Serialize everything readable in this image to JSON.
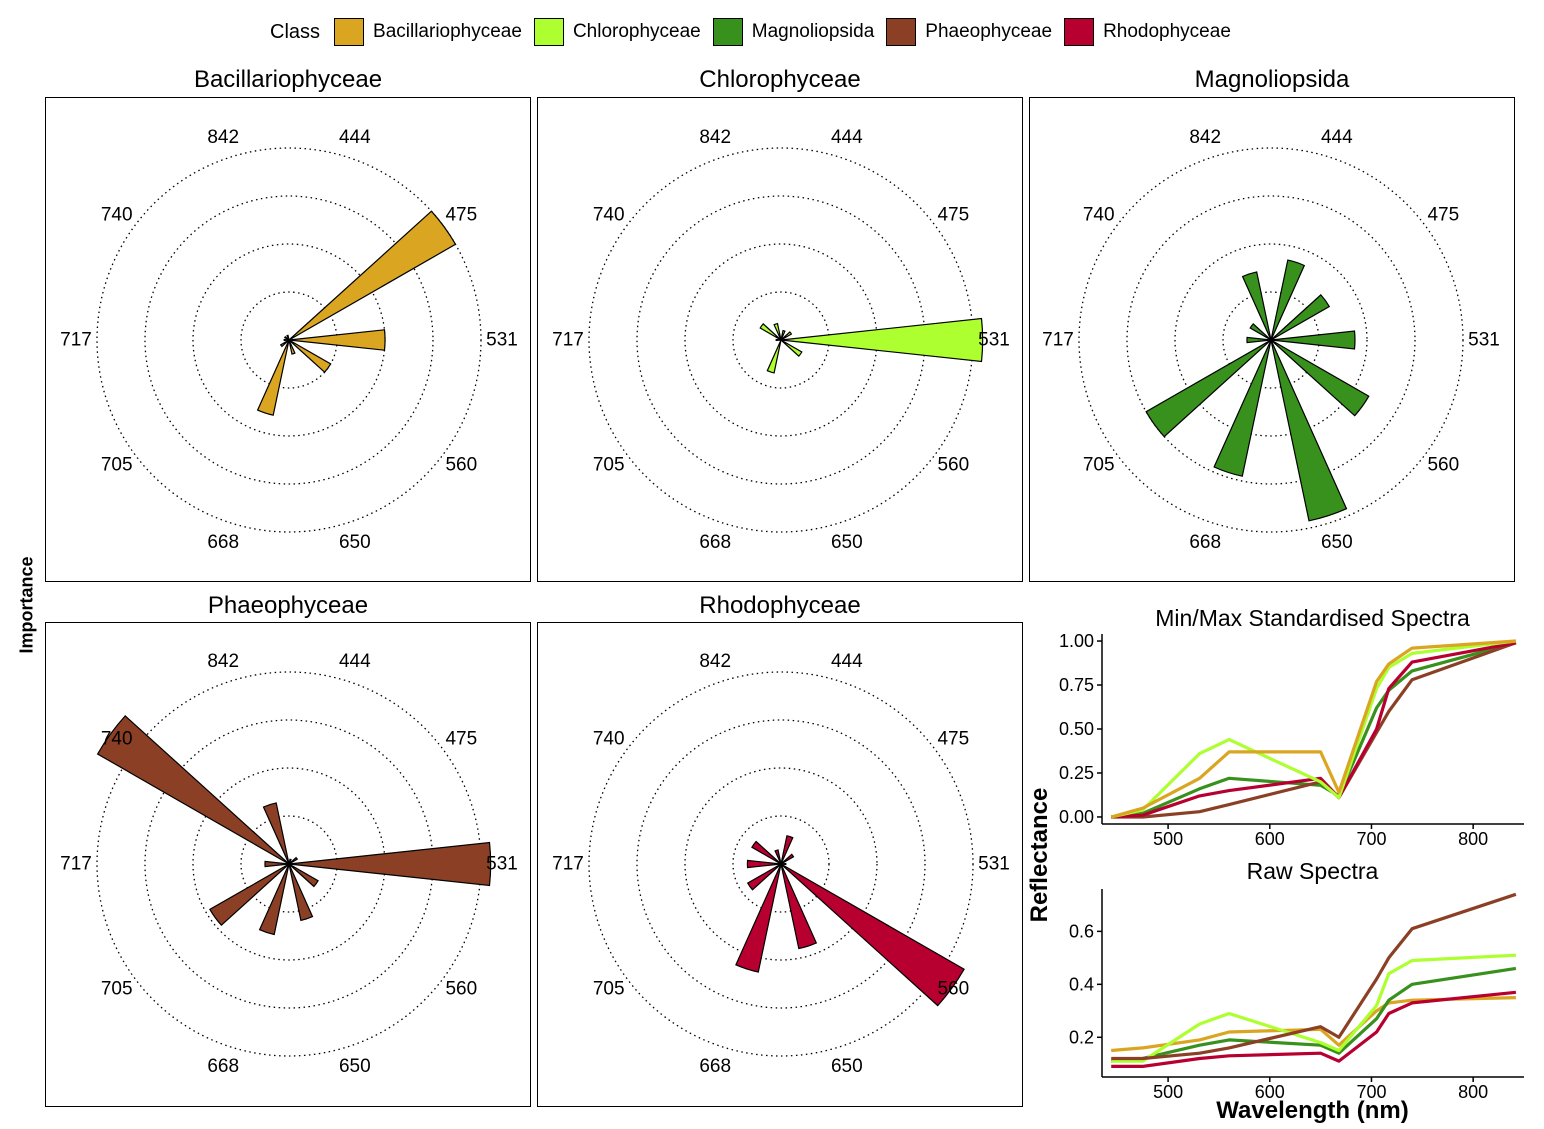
{
  "legend": {
    "title": "Class",
    "items": [
      {
        "label": "Bacillariophyceae",
        "color": "#DAA520"
      },
      {
        "label": "Chlorophyceae",
        "color": "#ADFF2F"
      },
      {
        "label": "Magnoliopsida",
        "color": "#38911C"
      },
      {
        "label": "Phaeophyceae",
        "color": "#8B4026"
      },
      {
        "label": "Rhodophyceae",
        "color": "#B80030"
      }
    ]
  },
  "y_axis_title": "Importance",
  "chart_data": [
    {
      "type": "polar-bar",
      "title": "Bacillariophyceae",
      "color": "#DAA520",
      "categories": [
        "444",
        "475",
        "531",
        "560",
        "650",
        "668",
        "705",
        "717",
        "740",
        "842"
      ],
      "values": [
        0,
        4.0,
        2.0,
        1.0,
        0.3,
        1.6,
        0.2,
        0.1,
        0.1,
        0.1
      ],
      "rlim": [
        0,
        4
      ],
      "grid_rings": [
        1,
        2,
        3,
        4
      ]
    },
    {
      "type": "polar-bar",
      "title": "Chlorophyceae",
      "color": "#ADFF2F",
      "categories": [
        "444",
        "475",
        "531",
        "560",
        "650",
        "668",
        "705",
        "717",
        "740",
        "842"
      ],
      "values": [
        0.2,
        0.25,
        4.2,
        0.5,
        0,
        0.7,
        0,
        0.1,
        0.5,
        0.35
      ],
      "rlim": [
        0,
        4
      ],
      "grid_rings": [
        1,
        2,
        3,
        4
      ]
    },
    {
      "type": "polar-bar",
      "title": "Magnoliopsida",
      "color": "#38911C",
      "categories": [
        "444",
        "475",
        "531",
        "560",
        "650",
        "668",
        "705",
        "717",
        "740",
        "842"
      ],
      "values": [
        1.7,
        1.4,
        1.75,
        2.35,
        3.85,
        2.9,
        3.0,
        0.5,
        0.5,
        1.45
      ],
      "rlim": [
        0,
        4
      ],
      "grid_rings": [
        1,
        2,
        3,
        4
      ]
    },
    {
      "type": "polar-bar",
      "title": "Phaeophyceae",
      "color": "#8B4026",
      "categories": [
        "444",
        "475",
        "531",
        "560",
        "650",
        "668",
        "705",
        "717",
        "740",
        "842"
      ],
      "values": [
        0.1,
        0.2,
        4.2,
        0.7,
        1.2,
        1.5,
        1.9,
        0.5,
        4.6,
        1.3
      ],
      "rlim": [
        0,
        4
      ],
      "grid_rings": [
        1,
        2,
        3,
        4
      ]
    },
    {
      "type": "polar-bar",
      "title": "Rhodophyceae",
      "color": "#B80030",
      "categories": [
        "444",
        "475",
        "531",
        "560",
        "650",
        "668",
        "705",
        "717",
        "740",
        "842"
      ],
      "values": [
        0.6,
        0.3,
        0.1,
        4.4,
        1.8,
        2.3,
        0.8,
        0.7,
        0.7,
        0.3
      ],
      "rlim": [
        0,
        4
      ],
      "grid_rings": [
        1,
        2,
        3,
        4
      ]
    },
    {
      "type": "line",
      "title": "Min/Max Standardised Spectra",
      "ylabel": "Reflectance",
      "xlabel": "Wavelength (nm)",
      "x": [
        444,
        475,
        531,
        560,
        650,
        668,
        705,
        717,
        740,
        842
      ],
      "xlim": [
        435,
        850
      ],
      "ylim": [
        -0.04,
        1.04
      ],
      "xticks": [
        "500",
        "600",
        "700",
        "800"
      ],
      "yticks": [
        "0.00",
        "0.25",
        "0.50",
        "0.75",
        "1.00"
      ],
      "series": [
        {
          "name": "Magnoliopsida",
          "color": "#38911C",
          "values": [
            0,
            0.02,
            0.16,
            0.22,
            0.18,
            0.12,
            0.62,
            0.72,
            0.83,
            0.99
          ]
        },
        {
          "name": "Phaeophyceae",
          "color": "#8B4026",
          "values": [
            0,
            0,
            0.03,
            0.07,
            0.2,
            0.11,
            0.48,
            0.6,
            0.78,
            0.99
          ]
        },
        {
          "name": "Rhodophyceae",
          "color": "#B80030",
          "values": [
            0,
            0.01,
            0.12,
            0.15,
            0.22,
            0.11,
            0.5,
            0.73,
            0.88,
            0.99
          ]
        },
        {
          "name": "Chlorophyceae",
          "color": "#ADFF2F",
          "values": [
            0,
            0.04,
            0.36,
            0.44,
            0.2,
            0.11,
            0.73,
            0.85,
            0.93,
            1.0
          ]
        },
        {
          "name": "Bacillariophyceae",
          "color": "#DAA520",
          "values": [
            0,
            0.05,
            0.22,
            0.37,
            0.37,
            0.14,
            0.77,
            0.87,
            0.96,
            1.0
          ]
        }
      ]
    },
    {
      "type": "line",
      "title": "Raw Spectra",
      "ylabel": "Reflectance",
      "xlabel": "Wavelength (nm)",
      "x": [
        444,
        475,
        531,
        560,
        650,
        668,
        705,
        717,
        740,
        842
      ],
      "xlim": [
        435,
        850
      ],
      "ylim": [
        0.05,
        0.76
      ],
      "xticks": [
        "500",
        "600",
        "700",
        "800"
      ],
      "yticks": [
        "0.2",
        "0.4",
        "0.6"
      ],
      "series": [
        {
          "name": "Bacillariophyceae",
          "color": "#DAA520",
          "values": [
            0.15,
            0.16,
            0.19,
            0.22,
            0.23,
            0.17,
            0.3,
            0.33,
            0.34,
            0.35
          ]
        },
        {
          "name": "Magnoliopsida",
          "color": "#38911C",
          "values": [
            0.11,
            0.12,
            0.17,
            0.19,
            0.17,
            0.14,
            0.27,
            0.34,
            0.4,
            0.46
          ]
        },
        {
          "name": "Chlorophyceae",
          "color": "#ADFF2F",
          "values": [
            0.11,
            0.11,
            0.25,
            0.29,
            0.18,
            0.15,
            0.32,
            0.44,
            0.49,
            0.51
          ]
        },
        {
          "name": "Rhodophyceae",
          "color": "#B80030",
          "values": [
            0.09,
            0.09,
            0.12,
            0.13,
            0.14,
            0.11,
            0.22,
            0.29,
            0.33,
            0.37
          ]
        },
        {
          "name": "Phaeophyceae",
          "color": "#8B4026",
          "values": [
            0.12,
            0.12,
            0.14,
            0.16,
            0.24,
            0.2,
            0.42,
            0.5,
            0.61,
            0.74
          ]
        }
      ]
    }
  ]
}
